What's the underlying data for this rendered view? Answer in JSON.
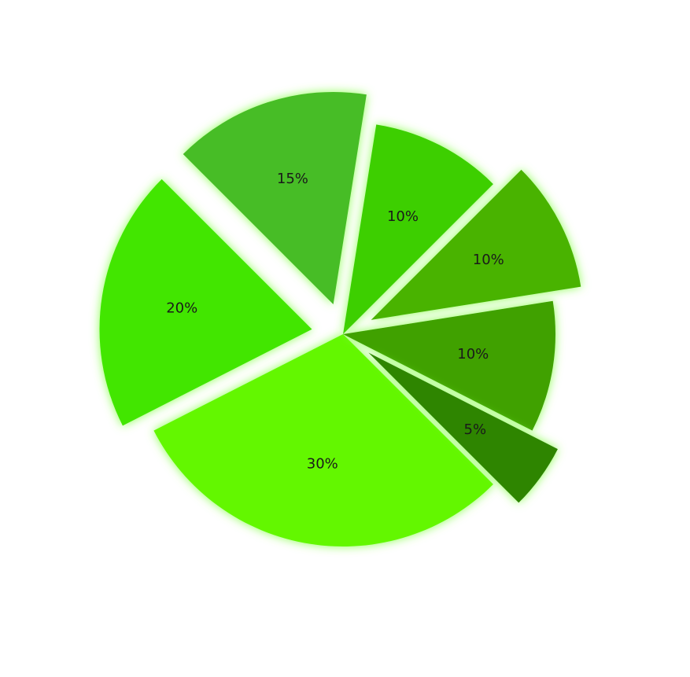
{
  "chart_data": {
    "type": "pie",
    "legend": "none",
    "slices": [
      {
        "label": "30%",
        "value": 30,
        "color": "#63f700",
        "exploded": false
      },
      {
        "label": "20%",
        "value": 20,
        "color": "#43e600",
        "exploded": true
      },
      {
        "label": "15%",
        "value": 15,
        "color": "#46bd25",
        "exploded": true
      },
      {
        "label": "10%",
        "value": 10,
        "color": "#3dcf05",
        "exploded": false
      },
      {
        "label": "10%",
        "value": 10,
        "color": "#4ab300",
        "exploded": true
      },
      {
        "label": "10%",
        "value": 10,
        "color": "#3fa100",
        "exploded": false
      },
      {
        "label": "5%",
        "value": 5,
        "color": "#2e8500",
        "exploded": true
      }
    ],
    "glow_color": "#7cff3a"
  }
}
